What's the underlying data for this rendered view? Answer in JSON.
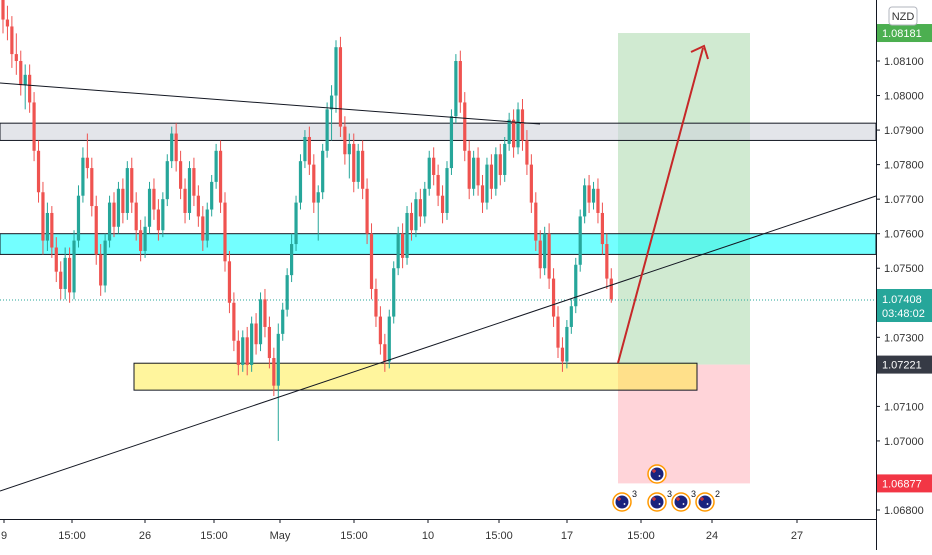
{
  "currency_button": "NZD",
  "chart_data": {
    "type": "candlestick",
    "currency": "NZD",
    "x_tick_labels": [
      "9",
      "15:00",
      "26",
      "15:00",
      "May",
      "15:00",
      "10",
      "15:00",
      "17",
      "15:00",
      "24",
      "27"
    ],
    "y_ticks": [
      1.068,
      1.069,
      1.07,
      1.071,
      1.072,
      1.073,
      1.074,
      1.075,
      1.076,
      1.077,
      1.078,
      1.079,
      1.08,
      1.081
    ],
    "y_tick_labels": [
      "1.06800",
      "1.06900",
      "1.07000",
      "1.07100",
      "1.07200",
      "1.07300",
      "1.07400",
      "1.07500",
      "1.07600",
      "1.07700",
      "1.07800",
      "1.07900",
      "1.08000",
      "1.08100"
    ],
    "ylim": [
      1.0671,
      1.0834
    ],
    "current_price": {
      "value": 1.07408,
      "label": "1.07408",
      "countdown": "03:48:02",
      "color": "#26a69a"
    },
    "take_profit": {
      "value": 1.08181,
      "label": "1.08181",
      "color": "#4caf50"
    },
    "entry": {
      "value": 1.07221,
      "label": "1.07221",
      "color": "#363a45"
    },
    "stop_loss": {
      "value": 1.06877,
      "label": "1.06877",
      "color": "#f23645"
    },
    "colors": {
      "up": "#26a69a",
      "down": "#ef5350",
      "gray_zone": "#d1d4dc",
      "cyan_zone": "#00ffff",
      "yellow_zone": "#ffeb3b",
      "profit_zone": "#c8e6c9",
      "loss_zone": "#ffcdd2",
      "arrow": "#c62828"
    },
    "zones": [
      {
        "name": "gray",
        "low": 1.0787,
        "high": 1.0792
      },
      {
        "name": "cyan",
        "low": 1.0754,
        "high": 1.076
      },
      {
        "name": "yellow",
        "low": 1.07147,
        "high": 1.07225
      }
    ],
    "events": [
      {
        "count": ""
      },
      {
        "count": "3"
      },
      {
        "count": "3"
      },
      {
        "count": "3"
      },
      {
        "count": "2"
      }
    ],
    "series": [
      {
        "ohlc": [
          [
            1.0829,
            1.0832,
            1.0818,
            1.0822
          ],
          [
            1.0822,
            1.0826,
            1.0816,
            1.082
          ],
          [
            1.082,
            1.0823,
            1.0808,
            1.0812
          ],
          [
            1.0812,
            1.0818,
            1.0806,
            1.081
          ],
          [
            1.081,
            1.0813,
            1.08,
            1.0803
          ],
          [
            1.0803,
            1.0809,
            1.0796,
            1.0806
          ],
          [
            1.0806,
            1.0809,
            1.0795,
            1.0798
          ],
          [
            1.0798,
            1.0801,
            1.0781,
            1.0784
          ],
          [
            1.0784,
            1.0787,
            1.0769,
            1.0772
          ],
          [
            1.0772,
            1.0775,
            1.0754,
            1.0758
          ],
          [
            1.0758,
            1.0769,
            1.0755,
            1.0766
          ],
          [
            1.0766,
            1.0768,
            1.0753,
            1.0756
          ],
          [
            1.0756,
            1.0759,
            1.0746,
            1.0749
          ],
          [
            1.0749,
            1.0752,
            1.0741,
            1.0744
          ],
          [
            1.0744,
            1.0756,
            1.0741,
            1.0753
          ],
          [
            1.0753,
            1.0756,
            1.074,
            1.0743
          ],
          [
            1.0743,
            1.0761,
            1.0741,
            1.0758
          ],
          [
            1.0758,
            1.0774,
            1.0756,
            1.0771
          ],
          [
            1.0771,
            1.0785,
            1.0769,
            1.0782
          ],
          [
            1.0782,
            1.0789,
            1.0776,
            1.0779
          ],
          [
            1.0779,
            1.0782,
            1.0765,
            1.0768
          ],
          [
            1.0768,
            1.0771,
            1.0751,
            1.0754
          ],
          [
            1.0754,
            1.0757,
            1.0742,
            1.0745
          ],
          [
            1.0745,
            1.076,
            1.0743,
            1.0758
          ],
          [
            1.0758,
            1.0771,
            1.0756,
            1.0769
          ],
          [
            1.0769,
            1.0772,
            1.0759,
            1.0762
          ],
          [
            1.0762,
            1.0775,
            1.076,
            1.0773
          ],
          [
            1.0773,
            1.0776,
            1.0763,
            1.0766
          ],
          [
            1.0766,
            1.0781,
            1.0764,
            1.0779
          ],
          [
            1.0779,
            1.0782,
            1.0766,
            1.0769
          ],
          [
            1.0769,
            1.0772,
            1.0758,
            1.0761
          ],
          [
            1.0761,
            1.0764,
            1.0752,
            1.0755
          ],
          [
            1.0755,
            1.0765,
            1.0753,
            1.0762
          ],
          [
            1.0762,
            1.0775,
            1.076,
            1.0773
          ],
          [
            1.0773,
            1.0776,
            1.0764,
            1.0767
          ],
          [
            1.0767,
            1.077,
            1.0758,
            1.0761
          ],
          [
            1.0761,
            1.0772,
            1.0759,
            1.077
          ],
          [
            1.077,
            1.0783,
            1.0768,
            1.0781
          ],
          [
            1.0781,
            1.0791,
            1.0779,
            1.0789
          ],
          [
            1.0789,
            1.0792,
            1.0778,
            1.0781
          ],
          [
            1.0781,
            1.0784,
            1.077,
            1.0773
          ],
          [
            1.0773,
            1.0776,
            1.0763,
            1.0766
          ],
          [
            1.0766,
            1.0781,
            1.0764,
            1.0779
          ],
          [
            1.0779,
            1.0782,
            1.0768,
            1.0771
          ],
          [
            1.0771,
            1.0774,
            1.0762,
            1.0765
          ],
          [
            1.0765,
            1.0768,
            1.0755,
            1.0758
          ],
          [
            1.0758,
            1.0769,
            1.0756,
            1.0767
          ],
          [
            1.0767,
            1.0777,
            1.0765,
            1.0775
          ],
          [
            1.0775,
            1.0786,
            1.0773,
            1.0784
          ],
          [
            1.0784,
            1.0787,
            1.0766,
            1.0769
          ],
          [
            1.0769,
            1.0772,
            1.0749,
            1.0752
          ],
          [
            1.0752,
            1.0755,
            1.0737,
            1.074
          ],
          [
            1.074,
            1.0743,
            1.0726,
            1.0729
          ],
          [
            1.0729,
            1.0732,
            1.0719,
            1.0722
          ],
          [
            1.0722,
            1.0732,
            1.072,
            1.073
          ],
          [
            1.073,
            1.0733,
            1.0719,
            1.0722
          ],
          [
            1.0722,
            1.0736,
            1.072,
            1.0734
          ],
          [
            1.0734,
            1.0737,
            1.0725,
            1.0728
          ],
          [
            1.0728,
            1.0743,
            1.0726,
            1.0741
          ],
          [
            1.0741,
            1.0744,
            1.073,
            1.0733
          ],
          [
            1.0733,
            1.0736,
            1.0721,
            1.0724
          ],
          [
            1.0724,
            1.0727,
            1.0713,
            1.0716
          ],
          [
            1.0716,
            1.0734,
            1.07,
            1.0731
          ],
          [
            1.0731,
            1.074,
            1.0729,
            1.0738
          ],
          [
            1.0738,
            1.075,
            1.0736,
            1.0748
          ],
          [
            1.0748,
            1.076,
            1.0746,
            1.0757
          ],
          [
            1.0757,
            1.0771,
            1.0755,
            1.0769
          ],
          [
            1.0769,
            1.0783,
            1.0767,
            1.0781
          ],
          [
            1.0781,
            1.079,
            1.0779,
            1.0788
          ],
          [
            1.0788,
            1.0791,
            1.0777,
            1.078
          ],
          [
            1.078,
            1.0783,
            1.0766,
            1.0769
          ],
          [
            1.0769,
            1.0774,
            1.0758,
            1.0772
          ],
          [
            1.0772,
            1.0786,
            1.077,
            1.0784
          ],
          [
            1.0784,
            1.0798,
            1.0782,
            1.0796
          ],
          [
            1.0796,
            1.0803,
            1.0787,
            1.08
          ],
          [
            1.08,
            1.0816,
            1.0795,
            1.0814
          ],
          [
            1.0814,
            1.0817,
            1.0788,
            1.0791
          ],
          [
            1.0791,
            1.0794,
            1.078,
            1.0783
          ],
          [
            1.0783,
            1.0789,
            1.0776,
            1.0786
          ],
          [
            1.0786,
            1.0789,
            1.0772,
            1.0775
          ],
          [
            1.0775,
            1.0786,
            1.0773,
            1.0784
          ],
          [
            1.0784,
            1.0787,
            1.077,
            1.0773
          ],
          [
            1.0773,
            1.0776,
            1.0757,
            1.076
          ],
          [
            1.076,
            1.0763,
            1.0741,
            1.0744
          ],
          [
            1.0744,
            1.0747,
            1.0733,
            1.0736
          ],
          [
            1.0736,
            1.0739,
            1.0725,
            1.0728
          ],
          [
            1.0728,
            1.0731,
            1.072,
            1.0723
          ],
          [
            1.0723,
            1.0738,
            1.0721,
            1.0736
          ],
          [
            1.0736,
            1.0752,
            1.0734,
            1.075
          ],
          [
            1.075,
            1.0762,
            1.0748,
            1.076
          ],
          [
            1.076,
            1.0763,
            1.075,
            1.0753
          ],
          [
            1.0753,
            1.0768,
            1.0751,
            1.0766
          ],
          [
            1.0766,
            1.0769,
            1.0758,
            1.0761
          ],
          [
            1.0761,
            1.0772,
            1.0759,
            1.077
          ],
          [
            1.077,
            1.0773,
            1.0762,
            1.0765
          ],
          [
            1.0765,
            1.0775,
            1.0763,
            1.0773
          ],
          [
            1.0773,
            1.0784,
            1.0771,
            1.0782
          ],
          [
            1.0782,
            1.0785,
            1.0774,
            1.0777
          ],
          [
            1.0777,
            1.078,
            1.0768,
            1.0771
          ],
          [
            1.0771,
            1.0774,
            1.0763,
            1.0766
          ],
          [
            1.0766,
            1.0781,
            1.0764,
            1.0779
          ],
          [
            1.0779,
            1.0796,
            1.0777,
            1.0794
          ],
          [
            1.0794,
            1.0812,
            1.0792,
            1.081
          ],
          [
            1.081,
            1.0813,
            1.0795,
            1.0798
          ],
          [
            1.0798,
            1.0801,
            1.0781,
            1.0784
          ],
          [
            1.0784,
            1.0787,
            1.077,
            1.0773
          ],
          [
            1.0773,
            1.0784,
            1.0771,
            1.0782
          ],
          [
            1.0782,
            1.0785,
            1.0771,
            1.0774
          ],
          [
            1.0774,
            1.0777,
            1.0766,
            1.0769
          ],
          [
            1.0769,
            1.0782,
            1.0767,
            1.078
          ],
          [
            1.078,
            1.0783,
            1.077,
            1.0773
          ],
          [
            1.0773,
            1.0785,
            1.0771,
            1.0783
          ],
          [
            1.0783,
            1.0786,
            1.0774,
            1.0777
          ],
          [
            1.0777,
            1.0788,
            1.0775,
            1.0786
          ],
          [
            1.0786,
            1.0795,
            1.0784,
            1.0793
          ],
          [
            1.0793,
            1.0796,
            1.0782,
            1.0785
          ],
          [
            1.0785,
            1.0798,
            1.0783,
            1.0796
          ],
          [
            1.0796,
            1.0799,
            1.0784,
            1.0787
          ],
          [
            1.0787,
            1.079,
            1.0777,
            1.078
          ],
          [
            1.078,
            1.0783,
            1.0766,
            1.0769
          ],
          [
            1.0769,
            1.0772,
            1.0755,
            1.0758
          ],
          [
            1.0758,
            1.0761,
            1.0747,
            1.075
          ],
          [
            1.075,
            1.0762,
            1.0748,
            1.076
          ],
          [
            1.076,
            1.0763,
            1.0744,
            1.0747
          ],
          [
            1.0747,
            1.075,
            1.0733,
            1.0736
          ],
          [
            1.0736,
            1.0739,
            1.0724,
            1.0727
          ],
          [
            1.0727,
            1.073,
            1.072,
            1.0723
          ],
          [
            1.0723,
            1.0735,
            1.0721,
            1.0733
          ],
          [
            1.0733,
            1.0741,
            1.0731,
            1.0739
          ],
          [
            1.0739,
            1.0753,
            1.0737,
            1.0751
          ],
          [
            1.0751,
            1.0767,
            1.0749,
            1.0765
          ],
          [
            1.0765,
            1.0776,
            1.0763,
            1.0774
          ],
          [
            1.0774,
            1.0777,
            1.0766,
            1.0769
          ],
          [
            1.0769,
            1.0775,
            1.0767,
            1.0773
          ],
          [
            1.0773,
            1.0776,
            1.0763,
            1.0766
          ],
          [
            1.0766,
            1.0769,
            1.0754,
            1.0757
          ],
          [
            1.0757,
            1.076,
            1.0744,
            1.0747
          ],
          [
            1.0747,
            1.075,
            1.074,
            1.0741
          ]
        ]
      }
    ]
  }
}
